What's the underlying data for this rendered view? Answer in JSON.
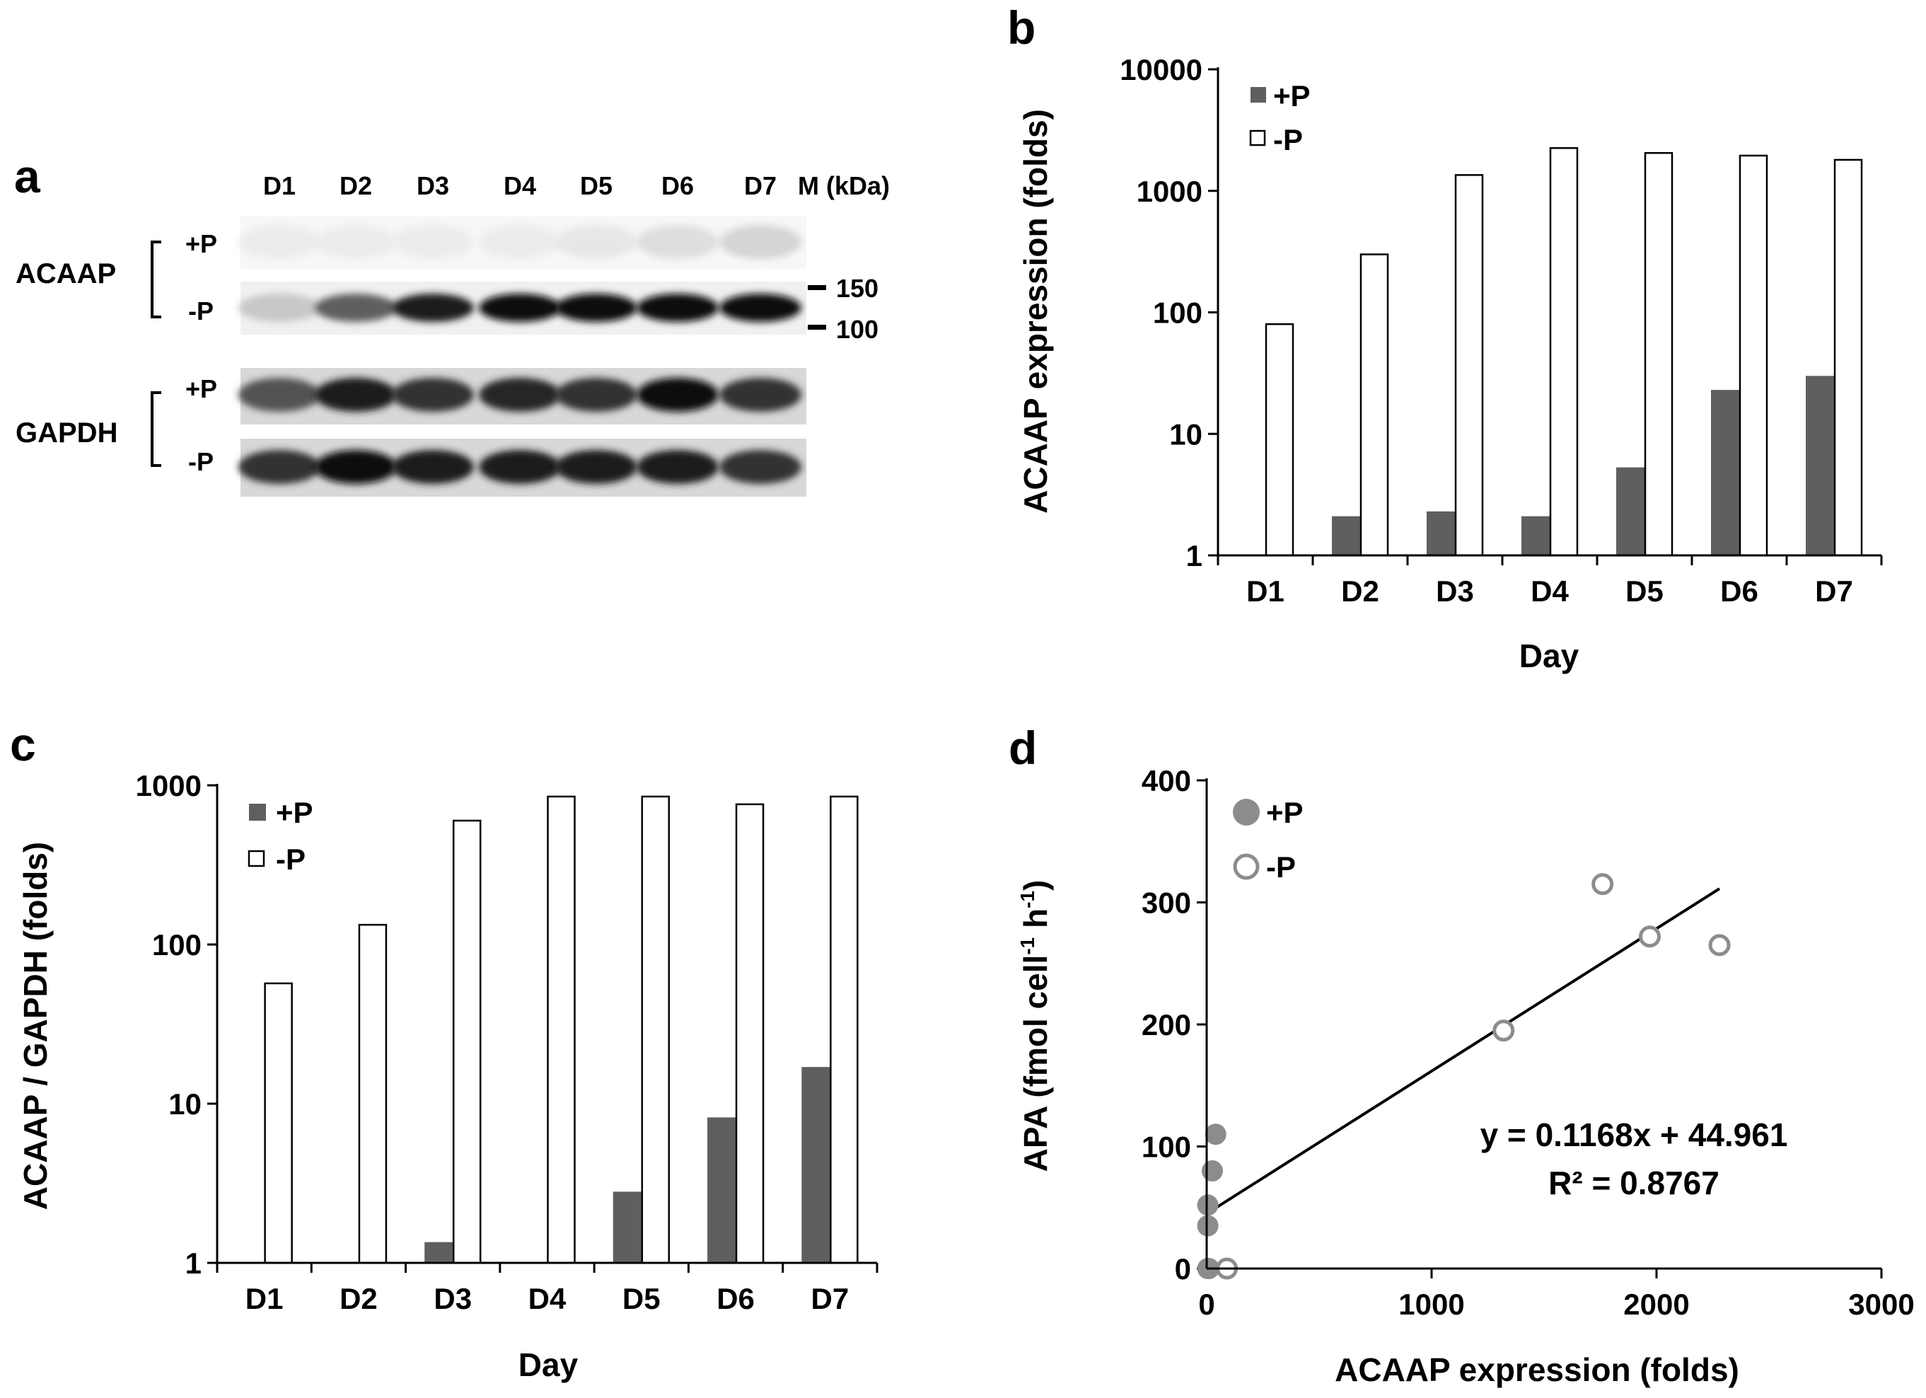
{
  "panel_letters": {
    "a": "a",
    "b": "b",
    "c": "c",
    "d": "d"
  },
  "blot": {
    "lanes": [
      "D1",
      "D2",
      "D3",
      "D4",
      "D5",
      "D6",
      "D7"
    ],
    "marker_header": "M (kDa)",
    "groups": [
      {
        "label": "ACAAP",
        "rows": [
          "+P",
          "-P"
        ],
        "band_intensity": {
          "+P": [
            0.02,
            0.02,
            0.02,
            0.02,
            0.04,
            0.08,
            0.12
          ],
          "-P": [
            0.18,
            0.65,
            0.95,
            1.0,
            1.0,
            1.0,
            1.0
          ]
        }
      },
      {
        "label": "GAPDH",
        "rows": [
          "+P",
          "-P"
        ],
        "band_intensity": {
          "+P": [
            0.7,
            0.95,
            0.85,
            0.9,
            0.85,
            1.0,
            0.85
          ],
          "-P": [
            0.85,
            1.0,
            0.95,
            0.95,
            0.95,
            0.95,
            0.85
          ]
        }
      }
    ],
    "markers": [
      "150",
      "100"
    ]
  },
  "chart_data": [
    {
      "id": "b",
      "type": "bar",
      "yscale": "log",
      "categories": [
        "D1",
        "D2",
        "D3",
        "D4",
        "D5",
        "D6",
        "D7"
      ],
      "series": [
        {
          "name": "+P",
          "values": [
            1,
            2.1,
            2.3,
            2.1,
            5.3,
            23,
            30
          ]
        },
        {
          "name": "-P",
          "values": [
            80,
            300,
            1350,
            2250,
            2050,
            1950,
            1800
          ]
        }
      ],
      "xlabel": "Day",
      "ylabel": "ACAAP expression (folds)",
      "ylim": [
        1,
        10000
      ],
      "yticks": [
        "1",
        "10",
        "100",
        "1000",
        "10000"
      ],
      "legend": "top-left"
    },
    {
      "id": "c",
      "type": "bar",
      "yscale": "log",
      "categories": [
        "D1",
        "D2",
        "D3",
        "D4",
        "D5",
        "D6",
        "D7"
      ],
      "series": [
        {
          "name": "+P",
          "values": [
            1,
            1,
            1.35,
            1,
            2.8,
            8.2,
            17
          ]
        },
        {
          "name": "-P",
          "values": [
            57,
            133,
            600,
            850,
            850,
            760,
            850
          ]
        }
      ],
      "xlabel": "Day",
      "ylabel": "ACAAP / GAPDH  (folds)",
      "ylim": [
        1,
        1000
      ],
      "yticks": [
        "1",
        "10",
        "100",
        "1000"
      ],
      "legend": "top-left"
    },
    {
      "id": "d",
      "type": "scatter",
      "series": [
        {
          "name": "+P",
          "points": [
            [
              5,
              0
            ],
            [
              5,
              35
            ],
            [
              5,
              52
            ],
            [
              25,
              80
            ],
            [
              40,
              110
            ],
            [
              10,
              0
            ]
          ]
        },
        {
          "name": "-P",
          "points": [
            [
              90,
              0
            ],
            [
              1320,
              195
            ],
            [
              1760,
              315
            ],
            [
              1970,
              272
            ],
            [
              2280,
              265
            ]
          ]
        }
      ],
      "trendline": {
        "slope": 0.1168,
        "intercept": 44.961,
        "x_range": [
          0,
          2280
        ]
      },
      "equation": "y = 0.1168x + 44.961",
      "r_squared": "R² = 0.8767",
      "xlabel": "ACAAP expression (folds)",
      "ylabel": "APA (fmol cell",
      "ylabel_sup1": "-1",
      "ylabel_mid": " h",
      "ylabel_sup2": "-1",
      "ylabel_end": ")",
      "xlim": [
        0,
        3000
      ],
      "ylim": [
        0,
        400
      ],
      "xticks": [
        "0",
        "1000",
        "2000",
        "3000"
      ],
      "yticks": [
        "0",
        "100",
        "200",
        "300",
        "400"
      ],
      "legend": "top-left"
    }
  ],
  "colors": {
    "filled_bar": "#5f5f5f",
    "filled_dot": "#8c8c8c",
    "open_dot_stroke": "#8c8c8c",
    "axis": "#000000"
  }
}
